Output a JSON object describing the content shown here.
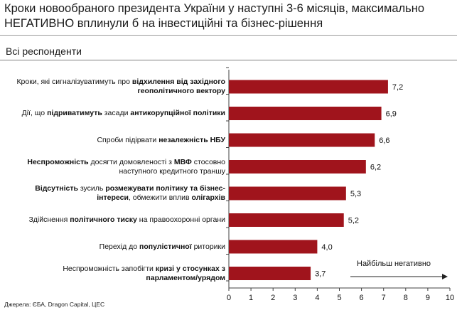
{
  "header": {
    "title": "Кроки новообраного президента України у наступні 3-6 місяців, максимально НЕГАТИВНО вплинули б на інвестиційні та бізнес-рішення",
    "subtitle": "Всі респонденти"
  },
  "source": "Джерела: ЄБА, Dragon Capital, ЦЕС",
  "colors": {
    "bar": "#a0141c",
    "axis": "#404040"
  },
  "chart_data": {
    "type": "bar",
    "orientation": "horizontal",
    "title": "",
    "xlim": [
      0,
      10
    ],
    "ticks": [
      "0",
      "1",
      "2",
      "3",
      "4",
      "5",
      "6",
      "7",
      "8",
      "9",
      "10"
    ],
    "annotation": "Найбільш негативно",
    "categories": [
      {
        "parts": [
          [
            "Кроки, які сигналізуватимуть про ",
            false
          ],
          [
            "відхилення від західного геополітичного вектору",
            true
          ]
        ]
      },
      {
        "parts": [
          [
            "Дії, що ",
            false
          ],
          [
            "підриватимуть",
            true
          ],
          [
            " засади ",
            false
          ],
          [
            "антикорупційної політики",
            true
          ]
        ]
      },
      {
        "parts": [
          [
            "Спроби підірвати ",
            false
          ],
          [
            "незалежність НБУ",
            true
          ]
        ]
      },
      {
        "parts": [
          [
            "Неспроможність",
            true
          ],
          [
            " досягти домовленості з ",
            false
          ],
          [
            "МВФ",
            true
          ],
          [
            " стосовно наступного кредитного траншу",
            false
          ]
        ]
      },
      {
        "parts": [
          [
            "Відсутність",
            true
          ],
          [
            " зусиль ",
            false
          ],
          [
            "розмежувати політику та бізнес-інтереси",
            true
          ],
          [
            ", обмежити вплив ",
            false
          ],
          [
            "олігархів",
            true
          ]
        ]
      },
      {
        "parts": [
          [
            "Здійснення ",
            false
          ],
          [
            "політичного тиску",
            true
          ],
          [
            " на правоохоронні органи",
            false
          ]
        ]
      },
      {
        "parts": [
          [
            "Перехід до ",
            false
          ],
          [
            "популістичної",
            true
          ],
          [
            " риторики",
            false
          ]
        ]
      },
      {
        "parts": [
          [
            "Неспроможність запобігти ",
            false
          ],
          [
            "кризі у стосунках з парламентом/урядом",
            true
          ]
        ]
      }
    ],
    "values": [
      7.2,
      6.9,
      6.6,
      6.2,
      5.3,
      5.2,
      4.0,
      3.7
    ],
    "value_labels": [
      "7,2",
      "6,9",
      "6,6",
      "6,2",
      "5,3",
      "5,2",
      "4,0",
      "3,7"
    ]
  }
}
